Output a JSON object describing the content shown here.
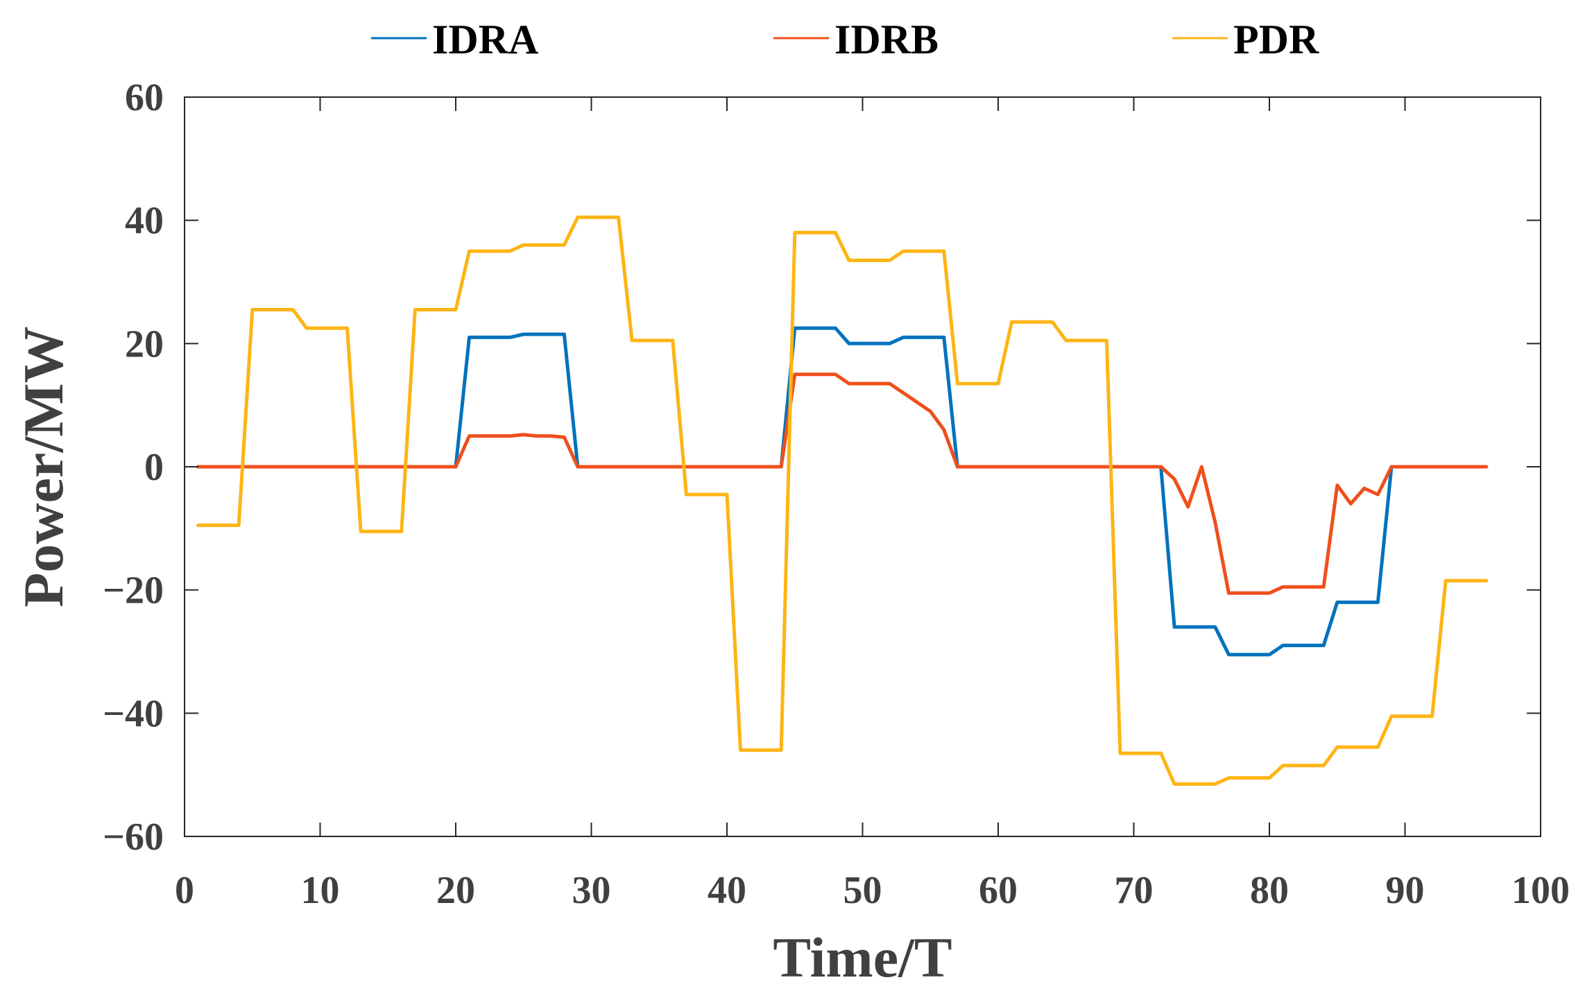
{
  "chart_data": {
    "type": "line",
    "title": "",
    "xlabel": "Time/T",
    "ylabel": "Power/MW",
    "xlim": [
      0,
      100
    ],
    "ylim": [
      -60,
      60
    ],
    "xticks": [
      0,
      10,
      20,
      30,
      40,
      50,
      60,
      70,
      80,
      90,
      100
    ],
    "yticks": [
      60,
      40,
      20,
      0,
      -20,
      -40,
      -60
    ],
    "ytick_labels": [
      "60",
      "40",
      "20",
      "0",
      "−20",
      "−40",
      "−60"
    ],
    "grid": false,
    "legend_position": "top",
    "x": [
      1,
      2,
      3,
      4,
      5,
      6,
      7,
      8,
      9,
      10,
      11,
      12,
      13,
      14,
      15,
      16,
      17,
      18,
      19,
      20,
      21,
      22,
      23,
      24,
      25,
      26,
      27,
      28,
      29,
      30,
      31,
      32,
      33,
      34,
      35,
      36,
      37,
      38,
      39,
      40,
      41,
      42,
      43,
      44,
      45,
      46,
      47,
      48,
      49,
      50,
      51,
      52,
      53,
      54,
      55,
      56,
      57,
      58,
      59,
      60,
      61,
      62,
      63,
      64,
      65,
      66,
      67,
      68,
      69,
      70,
      71,
      72,
      73,
      74,
      75,
      76,
      77,
      78,
      79,
      80,
      81,
      82,
      83,
      84,
      85,
      86,
      87,
      88,
      89,
      90,
      91,
      92,
      93,
      94,
      95,
      96
    ],
    "series": [
      {
        "name": "IDRA",
        "color": "#0072BD",
        "values": [
          0,
          0,
          0,
          0,
          0,
          0,
          0,
          0,
          0,
          0,
          0,
          0,
          0,
          0,
          0,
          0,
          0,
          0,
          0,
          0,
          21,
          21,
          21,
          21,
          21.5,
          21.5,
          21.5,
          21.5,
          0,
          0,
          0,
          0,
          0,
          0,
          0,
          0,
          0,
          0,
          0,
          0,
          0,
          0,
          0,
          0,
          22.5,
          22.5,
          22.5,
          22.5,
          20,
          20,
          20,
          20,
          21,
          21,
          21,
          21,
          0,
          0,
          0,
          0,
          0,
          0,
          0,
          0,
          0,
          0,
          0,
          0,
          0,
          0,
          0,
          0,
          -26,
          -26,
          -26,
          -26,
          -30.5,
          -30.5,
          -30.5,
          -30.5,
          -29,
          -29,
          -29,
          -29,
          -22,
          -22,
          -22,
          -22,
          0,
          0,
          0,
          0,
          0,
          0,
          0,
          0
        ]
      },
      {
        "name": "IDRB",
        "color": "#EE4F1C",
        "values": [
          0,
          0,
          0,
          0,
          0,
          0,
          0,
          0,
          0,
          0,
          0,
          0,
          0,
          0,
          0,
          0,
          0,
          0,
          0,
          0,
          5,
          5,
          5,
          5,
          5.2,
          5,
          5,
          4.8,
          0,
          0,
          0,
          0,
          0,
          0,
          0,
          0,
          0,
          0,
          0,
          0,
          0,
          0,
          0,
          0,
          15,
          15,
          15,
          15,
          13.5,
          13.5,
          13.5,
          13.5,
          12,
          10.5,
          9,
          6,
          0,
          0,
          0,
          0,
          0,
          0,
          0,
          0,
          0,
          0,
          0,
          0,
          0,
          0,
          0,
          0,
          -2,
          -6.5,
          0,
          -9,
          -20.5,
          -20.5,
          -20.5,
          -20.5,
          -19.5,
          -19.5,
          -19.5,
          -19.5,
          -3,
          -6,
          -3.5,
          -4.5,
          0,
          0,
          0,
          0,
          0,
          0,
          0,
          0
        ]
      },
      {
        "name": "PDR",
        "color": "#FDB515",
        "values": [
          -9.5,
          -9.5,
          -9.5,
          -9.5,
          25.5,
          25.5,
          25.5,
          25.5,
          22.5,
          22.5,
          22.5,
          22.5,
          -10.5,
          -10.5,
          -10.5,
          -10.5,
          25.5,
          25.5,
          25.5,
          25.5,
          35,
          35,
          35,
          35,
          36,
          36,
          36,
          36,
          40.5,
          40.5,
          40.5,
          40.5,
          20.5,
          20.5,
          20.5,
          20.5,
          -4.5,
          -4.5,
          -4.5,
          -4.5,
          -46,
          -46,
          -46,
          -46,
          38,
          38,
          38,
          38,
          33.5,
          33.5,
          33.5,
          33.5,
          35,
          35,
          35,
          35,
          13.5,
          13.5,
          13.5,
          13.5,
          23.5,
          23.5,
          23.5,
          23.5,
          20.5,
          20.5,
          20.5,
          20.5,
          -46.5,
          -46.5,
          -46.5,
          -46.5,
          -51.5,
          -51.5,
          -51.5,
          -51.5,
          -50.5,
          -50.5,
          -50.5,
          -50.5,
          -48.5,
          -48.5,
          -48.5,
          -48.5,
          -45.5,
          -45.5,
          -45.5,
          -45.5,
          -40.5,
          -40.5,
          -40.5,
          -40.5,
          -18.5,
          -18.5,
          -18.5,
          -18.5
        ]
      }
    ]
  }
}
